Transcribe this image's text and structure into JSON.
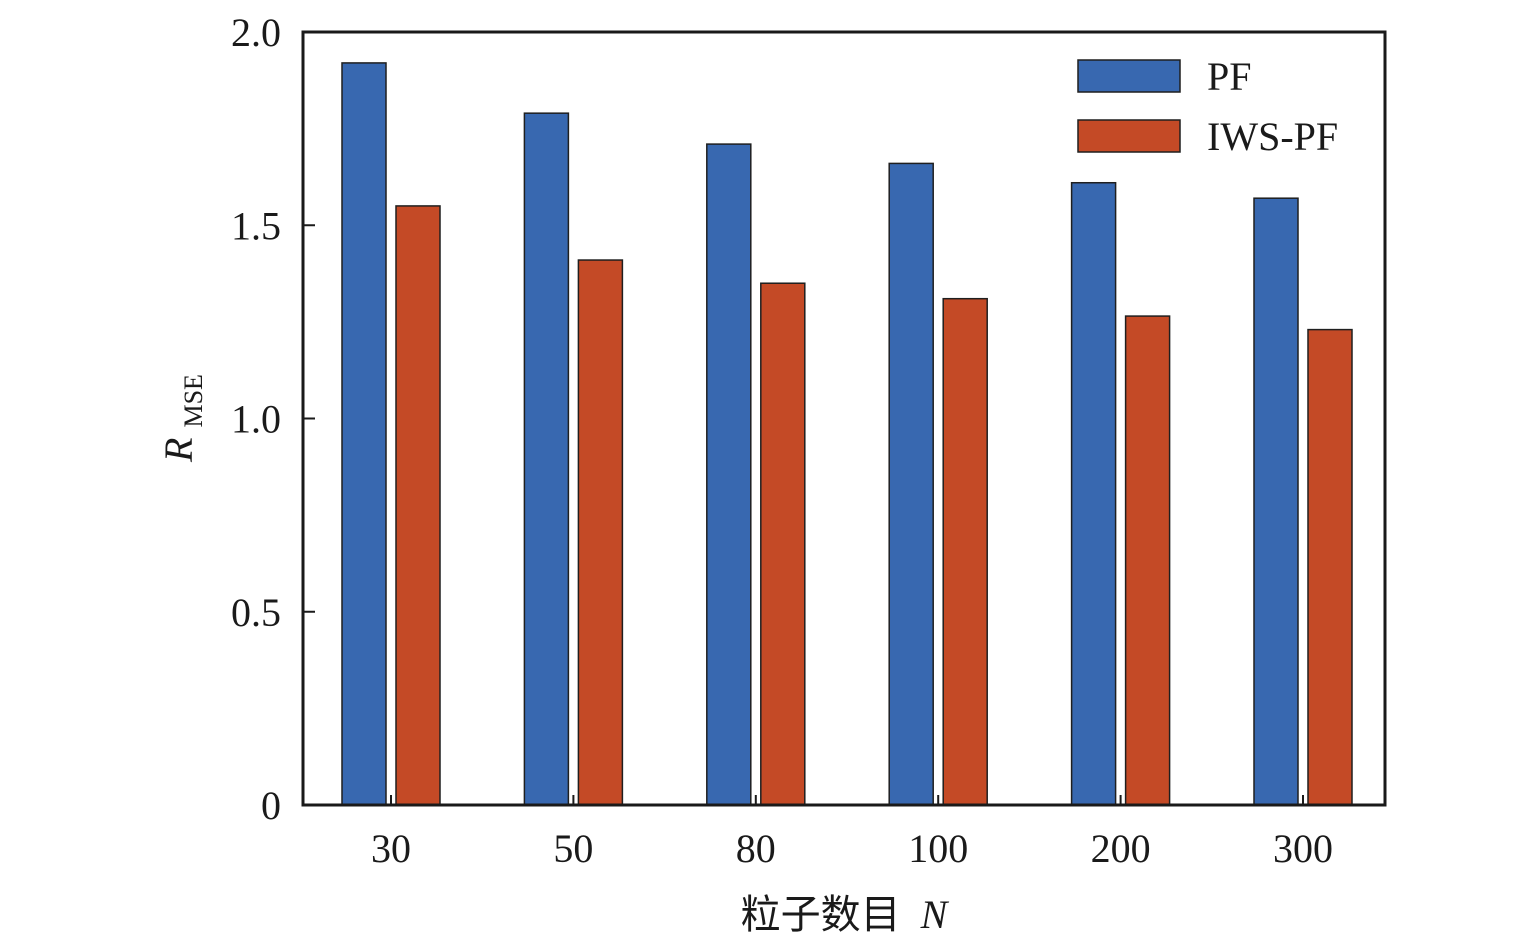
{
  "chart_data": {
    "type": "bar",
    "categories": [
      "30",
      "50",
      "80",
      "100",
      "200",
      "300"
    ],
    "series": [
      {
        "name": "PF",
        "color": "#3868b0",
        "values": [
          1.92,
          1.79,
          1.71,
          1.66,
          1.61,
          1.57
        ]
      },
      {
        "name": "IWS-PF",
        "color": "#c44a26",
        "values": [
          1.55,
          1.41,
          1.35,
          1.31,
          1.265,
          1.23
        ]
      }
    ],
    "title": "",
    "xlabel": "粒子数目 N",
    "xlabel_parts": {
      "text": "粒子数目",
      "variable": "N"
    },
    "ylabel": "R_MSE",
    "ylabel_parts": {
      "symbol": "R",
      "subscript": "MSE"
    },
    "ylim": [
      0,
      2.0
    ],
    "yticks": [
      0,
      0.5,
      1.0,
      1.5,
      2.0
    ],
    "ytick_labels": [
      "0",
      "0.5",
      "1.0",
      "1.5",
      "2.0"
    ],
    "grid": false,
    "legend_position": "top-right"
  }
}
